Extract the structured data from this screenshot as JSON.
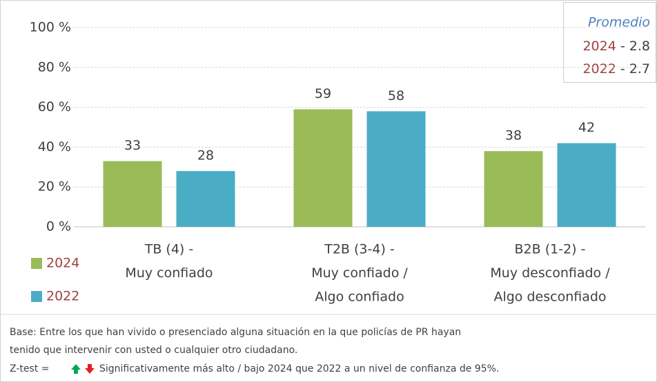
{
  "chart_data": {
    "type": "bar",
    "categories": [
      [
        "TB (4) -",
        "Muy confiado"
      ],
      [
        "T2B (3-4) -",
        "Muy confiado /",
        "Algo confiado"
      ],
      [
        "B2B (1-2) -",
        "Muy desconfiado /",
        "Algo desconfiado"
      ]
    ],
    "series": [
      {
        "name": "2024",
        "color": "#9bbb59",
        "values": [
          33,
          59,
          38
        ]
      },
      {
        "name": "2022",
        "color": "#4bacc6",
        "values": [
          28,
          58,
          42
        ]
      }
    ],
    "ylim": [
      0,
      100
    ],
    "yticks": [
      {
        "value": 0,
        "label": "0 %"
      },
      {
        "value": 20,
        "label": "20 %"
      },
      {
        "value": 40,
        "label": "40 %"
      },
      {
        "value": 60,
        "label": "60 %"
      },
      {
        "value": 80,
        "label": "80 %"
      },
      {
        "value": 100,
        "label": "100 %"
      }
    ],
    "grid": true,
    "legend": "bottom-left",
    "promedio": {
      "title": "Promedio",
      "items": [
        {
          "label": "2024",
          "text": "- 2.8"
        },
        {
          "label": "2022",
          "text": "- 2.7"
        }
      ]
    },
    "footnote": {
      "lines": [
        "Base: Entre los que han vivido o presenciado alguna situación en la que policías de PR hayan",
        "tenido que intervenir con usted o cualquier otro ciudadano."
      ],
      "ztest_prefix": "Z-test =",
      "ztest_text": "Significativamente más alto / bajo 2024 que 2022 a un nivel de confianza de 95%."
    }
  }
}
